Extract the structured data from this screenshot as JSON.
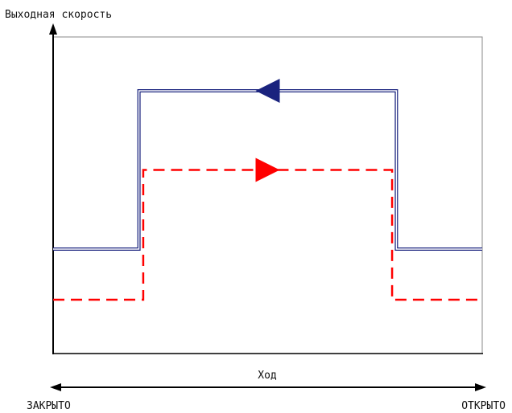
{
  "labels": {
    "y_axis": "Выходная скорость",
    "stroke_axis": "Ход",
    "closed": "ЗАКРЫТО",
    "open": "ОТКРЫТО"
  },
  "colors": {
    "axis": "#000000",
    "frame": "#888888",
    "closing_curve": "#1a237e",
    "opening_curve": "#ff0000"
  },
  "curves": [
    {
      "id": "closing",
      "style": "double-solid",
      "arrow_direction": "left",
      "low_level": 0.33,
      "high_level": 0.83,
      "step_up_at": 0.2,
      "step_down_at": 0.8
    },
    {
      "id": "opening",
      "style": "dashed",
      "arrow_direction": "right",
      "low_level": 0.17,
      "high_level": 0.58,
      "step_up_at": 0.21,
      "step_down_at": 0.79
    }
  ]
}
